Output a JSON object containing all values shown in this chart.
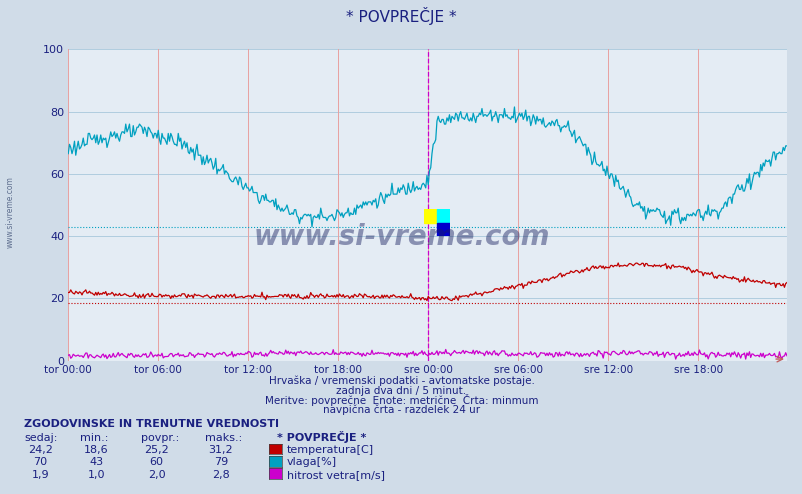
{
  "title": "* POVPREČJE *",
  "bg_color": "#d0dce8",
  "plot_bg": "#e4ecf4",
  "temp_color": "#c00000",
  "humidity_color": "#00a0c0",
  "wind_color": "#cc00cc",
  "text_color": "#1a2080",
  "ylabel_ticks": [
    0,
    20,
    40,
    60,
    80,
    100
  ],
  "xtick_labels": [
    "tor 00:00",
    "tor 06:00",
    "tor 12:00",
    "tor 18:00",
    "sre 00:00",
    "sre 06:00",
    "sre 12:00",
    "sre 18:00"
  ],
  "temp_min_line": 18.6,
  "humidity_avg_line": 43.0,
  "subtitle1": "Hrvaška / vremenski podatki - avtomatske postaje.",
  "subtitle2": "zadnja dva dni / 5 minut.",
  "subtitle3": "Meritve: povprečne  Enote: metrične  Črta: minmum",
  "subtitle4": "navpična črta - razdelek 24 ur",
  "legend_title": "* POVPREČJE *",
  "leg1_label": "temperatura[C]",
  "leg2_label": "vlaga[%]",
  "leg3_label": "hitrost vetra[m/s]",
  "stats_label": "ZGODOVINSKE IN TRENUTNE VREDNOSTI",
  "col_headers": [
    "sedaj:",
    "min.:",
    "povpr.:",
    "maks.:"
  ],
  "row1": [
    "24,2",
    "18,6",
    "25,2",
    "31,2"
  ],
  "row2": [
    "70",
    "43",
    "60",
    "79"
  ],
  "row3": [
    "1,9",
    "1,0",
    "2,0",
    "2,8"
  ],
  "watermark": "www.si-vreme.com"
}
